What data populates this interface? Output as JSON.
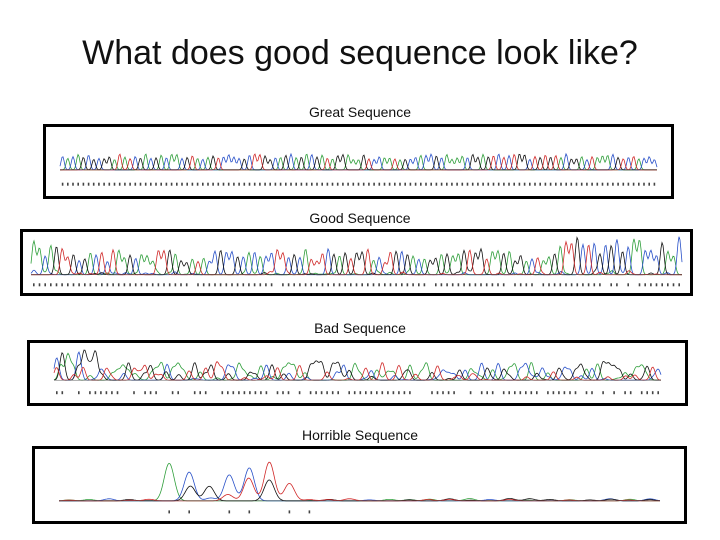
{
  "slide": {
    "title": "What does good sequence look like?"
  },
  "panels": [
    {
      "id": "great",
      "label": "Great Sequence",
      "quality": "great"
    },
    {
      "id": "good",
      "label": "Good Sequence",
      "quality": "good"
    },
    {
      "id": "bad",
      "label": "Bad Sequence",
      "quality": "bad"
    },
    {
      "id": "horrible",
      "label": "Horrible Sequence",
      "quality": "horrible"
    }
  ],
  "trace_colors": {
    "A": "#2e9e3a",
    "C": "#2850c8",
    "G": "#111111",
    "T": "#d02828"
  }
}
